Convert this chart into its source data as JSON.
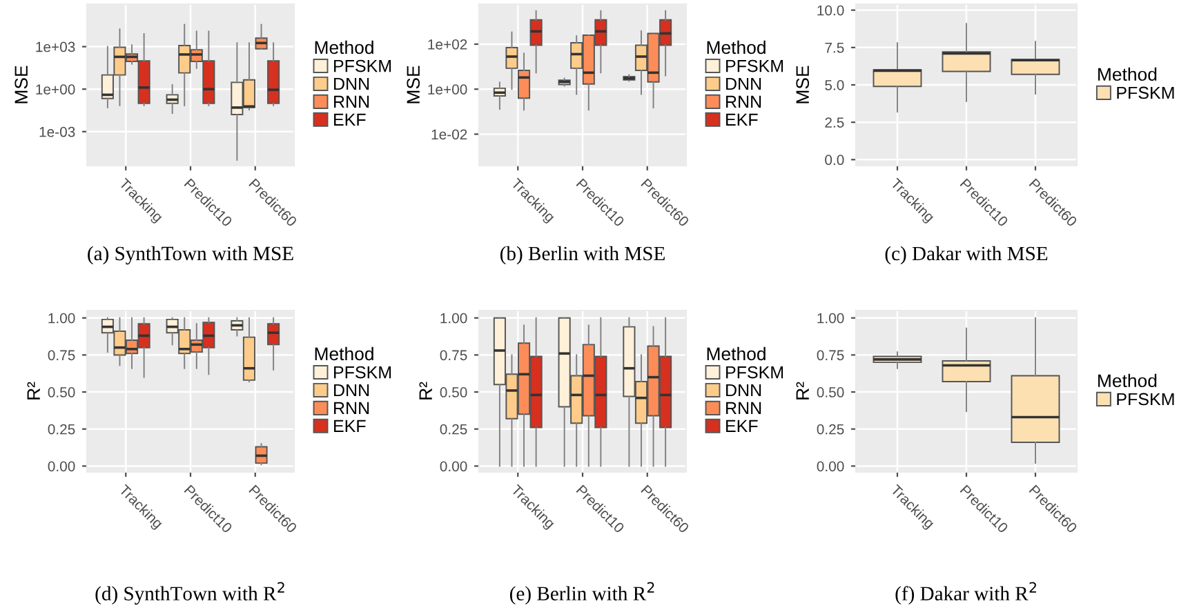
{
  "chart_data": [
    {
      "type": "box",
      "title": "(a) SynthTown with MSE",
      "ylabel": "MSE",
      "categories": [
        "Tracking",
        "Predict10",
        "Predict60"
      ],
      "log": true,
      "ylim": [
        4e-06,
        1000000
      ],
      "yticks": [
        {
          "value": 0.001,
          "label": "1e-03"
        },
        {
          "value": 1,
          "label": "1e+00"
        },
        {
          "value": 1000,
          "label": "1e+03"
        }
      ],
      "grid": true,
      "legend": "right",
      "legend_title": "Method",
      "series": [
        {
          "name": "PFSKM",
          "color": "#fef0d9",
          "boxes": [
            {
              "low": 0.05,
              "q1": 0.22,
              "median": 0.4,
              "q3": 10,
              "high": 1000
            },
            {
              "low": 0.02,
              "q1": 0.1,
              "median": 0.18,
              "q3": 0.4,
              "high": 2
            },
            {
              "low": 1e-05,
              "q1": 0.016,
              "median": 0.05,
              "q3": 3,
              "high": 1800
            }
          ]
        },
        {
          "name": "DNN",
          "color": "#fdcc8a",
          "boxes": [
            {
              "low": 0.07,
              "q1": 10,
              "median": 190,
              "q3": 900,
              "high": 17000
            },
            {
              "low": 0.07,
              "q1": 14,
              "median": 280,
              "q3": 1200,
              "high": 36000
            },
            {
              "low": 0.035,
              "q1": 0.05,
              "median": 0.06,
              "q3": 4.5,
              "high": 1800
            }
          ]
        },
        {
          "name": "RNN",
          "color": "#fc8d59",
          "boxes": [
            {
              "low": 60,
              "q1": 90,
              "median": 190,
              "q3": 300,
              "high": 1300
            },
            {
              "low": 30,
              "q1": 90,
              "median": 280,
              "q3": 600,
              "high": 12000
            },
            {
              "low": 700,
              "q1": 700,
              "median": 1800,
              "q3": 4000,
              "high": 36000
            }
          ]
        },
        {
          "name": "EKF",
          "color": "#d7301f",
          "boxes": [
            {
              "low": 0.07,
              "q1": 0.1,
              "median": 1.3,
              "q3": 100,
              "high": 8000
            },
            {
              "low": 0.07,
              "q1": 0.1,
              "median": 1,
              "q3": 100,
              "high": 12000
            },
            {
              "low": 0.07,
              "q1": 0.1,
              "median": 0.9,
              "q3": 100,
              "high": 1800
            }
          ]
        }
      ]
    },
    {
      "type": "box",
      "title": "(b) Berlin with MSE",
      "ylabel": "MSE",
      "categories": [
        "Tracking",
        "Predict10",
        "Predict60"
      ],
      "log": true,
      "ylim": [
        0.0004,
        6000
      ],
      "yticks": [
        {
          "value": 0.01,
          "label": "1e-02"
        },
        {
          "value": 1,
          "label": "1e+00"
        },
        {
          "value": 100,
          "label": "1e+02"
        }
      ],
      "grid": true,
      "legend": "right",
      "legend_title": "Method",
      "series": [
        {
          "name": "PFSKM",
          "color": "#fef0d9",
          "boxes": [
            {
              "low": 0.13,
              "q1": 0.5,
              "median": 0.7,
              "q3": 1.1,
              "high": 2
            },
            {
              "low": 1.4,
              "q1": 1.6,
              "median": 2.1,
              "q3": 2.5,
              "high": 3
            },
            {
              "low": 2.3,
              "q1": 2.6,
              "median": 3,
              "q3": 3.6,
              "high": 4.3
            }
          ]
        },
        {
          "name": "DNN",
          "color": "#fdcc8a",
          "boxes": [
            {
              "low": 1,
              "q1": 8.5,
              "median": 28,
              "q3": 70,
              "high": 340
            },
            {
              "low": 0.6,
              "q1": 8.5,
              "median": 36,
              "q3": 115,
              "high": 230
            },
            {
              "low": 0.6,
              "q1": 6.8,
              "median": 28,
              "q3": 90,
              "high": 380
            }
          ]
        },
        {
          "name": "RNN",
          "color": "#fc8d59",
          "boxes": [
            {
              "low": 0.12,
              "q1": 0.4,
              "median": 3.3,
              "q3": 6.8,
              "high": 39
            },
            {
              "low": 0.12,
              "q1": 1.7,
              "median": 5.4,
              "q3": 250,
              "high": 250
            },
            {
              "low": 0.15,
              "q1": 2.1,
              "median": 5.4,
              "q3": 300,
              "high": 300
            }
          ]
        },
        {
          "name": "EKF",
          "color": "#d7301f",
          "boxes": [
            {
              "low": 5.4,
              "q1": 90,
              "median": 370,
              "q3": 1200,
              "high": 3000
            },
            {
              "low": 5.4,
              "q1": 90,
              "median": 370,
              "q3": 1200,
              "high": 3000
            },
            {
              "low": 4,
              "q1": 90,
              "median": 300,
              "q3": 1200,
              "high": 3000
            }
          ]
        }
      ]
    },
    {
      "type": "box",
      "title": "(c) Dakar with MSE",
      "ylabel": "MSE",
      "categories": [
        "Tracking",
        "Predict10",
        "Predict60"
      ],
      "ylim": [
        -0.4,
        10.4
      ],
      "yticks": [
        {
          "value": 0,
          "label": "0.0"
        },
        {
          "value": 2.5,
          "label": "2.5"
        },
        {
          "value": 5,
          "label": "5.0"
        },
        {
          "value": 7.5,
          "label": "7.5"
        },
        {
          "value": 10,
          "label": "10.0"
        }
      ],
      "grid": true,
      "legend": "right",
      "legend_title": "Method",
      "series": [
        {
          "name": "PFSKM",
          "color": "#fde0b2",
          "boxes": [
            {
              "low": 3.2,
              "q1": 4.9,
              "median": 5.95,
              "q3": 6.0,
              "high": 7.8
            },
            {
              "low": 3.9,
              "q1": 5.9,
              "median": 7.1,
              "q3": 7.2,
              "high": 9.1
            },
            {
              "low": 4.4,
              "q1": 5.7,
              "median": 6.65,
              "q3": 6.7,
              "high": 7.9
            }
          ]
        }
      ]
    },
    {
      "type": "box",
      "title": "(d) SynthTown with R$^{2}$",
      "ylabel": "R²",
      "categories": [
        "Tracking",
        "Predict10",
        "Predict60"
      ],
      "ylim": [
        -0.04,
        1.05
      ],
      "yticks": [
        {
          "value": 0,
          "label": "0.00"
        },
        {
          "value": 0.25,
          "label": "0.25"
        },
        {
          "value": 0.5,
          "label": "0.50"
        },
        {
          "value": 0.75,
          "label": "0.75"
        },
        {
          "value": 1,
          "label": "1.00"
        }
      ],
      "grid": true,
      "legend": "right",
      "legend_title": "Method",
      "series": [
        {
          "name": "PFSKM",
          "color": "#fef0d9",
          "boxes": [
            {
              "low": 0.77,
              "q1": 0.9,
              "median": 0.94,
              "q3": 0.99,
              "high": 1.0
            },
            {
              "low": 0.82,
              "q1": 0.9,
              "median": 0.94,
              "q3": 0.99,
              "high": 1.0
            },
            {
              "low": 0.88,
              "q1": 0.92,
              "median": 0.95,
              "q3": 0.98,
              "high": 1.0
            }
          ]
        },
        {
          "name": "DNN",
          "color": "#fdcc8a",
          "boxes": [
            {
              "low": 0.68,
              "q1": 0.75,
              "median": 0.8,
              "q3": 0.91,
              "high": 1.0
            },
            {
              "low": 0.66,
              "q1": 0.76,
              "median": 0.79,
              "q3": 0.92,
              "high": 1.0
            },
            {
              "low": 0.57,
              "q1": 0.58,
              "median": 0.66,
              "q3": 0.87,
              "high": 1.0
            }
          ]
        },
        {
          "name": "RNN",
          "color": "#fc8d59",
          "boxes": [
            {
              "low": 0.66,
              "q1": 0.76,
              "median": 0.79,
              "q3": 0.85,
              "high": 1.0
            },
            {
              "low": 0.66,
              "q1": 0.77,
              "median": 0.82,
              "q3": 0.85,
              "high": 0.96
            },
            {
              "low": 0.01,
              "q1": 0.02,
              "median": 0.07,
              "q3": 0.13,
              "high": 0.15
            }
          ]
        },
        {
          "name": "EKF",
          "color": "#d7301f",
          "boxes": [
            {
              "low": 0.6,
              "q1": 0.8,
              "median": 0.88,
              "q3": 0.96,
              "high": 1.0
            },
            {
              "low": 0.62,
              "q1": 0.8,
              "median": 0.88,
              "q3": 0.97,
              "high": 1.0
            },
            {
              "low": 0.65,
              "q1": 0.82,
              "median": 0.9,
              "q3": 0.96,
              "high": 1.0
            }
          ]
        }
      ]
    },
    {
      "type": "box",
      "title": "(e) Berlin with R$^{2}$",
      "ylabel": "R²",
      "categories": [
        "Tracking",
        "Predict10",
        "Predict60"
      ],
      "ylim": [
        -0.04,
        1.05
      ],
      "yticks": [
        {
          "value": 0,
          "label": "0.00"
        },
        {
          "value": 0.25,
          "label": "0.25"
        },
        {
          "value": 0.5,
          "label": "0.50"
        },
        {
          "value": 0.75,
          "label": "0.75"
        },
        {
          "value": 1,
          "label": "1.00"
        }
      ],
      "grid": true,
      "legend": "right",
      "legend_title": "Method",
      "series": [
        {
          "name": "PFSKM",
          "color": "#fef0d9",
          "boxes": [
            {
              "low": 0,
              "q1": 0.55,
              "median": 0.78,
              "q3": 1.0,
              "high": 1.0
            },
            {
              "low": 0,
              "q1": 0.4,
              "median": 0.76,
              "q3": 1.0,
              "high": 1.0
            },
            {
              "low": 0,
              "q1": 0.47,
              "median": 0.66,
              "q3": 0.94,
              "high": 1.0
            }
          ]
        },
        {
          "name": "DNN",
          "color": "#fdcc8a",
          "boxes": [
            {
              "low": 0,
              "q1": 0.32,
              "median": 0.51,
              "q3": 0.62,
              "high": 0.75
            },
            {
              "low": 0,
              "q1": 0.29,
              "median": 0.48,
              "q3": 0.61,
              "high": 0.75
            },
            {
              "low": 0,
              "q1": 0.29,
              "median": 0.46,
              "q3": 0.57,
              "high": 0.75
            }
          ]
        },
        {
          "name": "RNN",
          "color": "#fc8d59",
          "boxes": [
            {
              "low": 0,
              "q1": 0.35,
              "median": 0.62,
              "q3": 0.83,
              "high": 0.95
            },
            {
              "low": 0,
              "q1": 0.34,
              "median": 0.61,
              "q3": 0.82,
              "high": 0.95
            },
            {
              "low": 0,
              "q1": 0.34,
              "median": 0.6,
              "q3": 0.81,
              "high": 0.94
            }
          ]
        },
        {
          "name": "EKF",
          "color": "#d7301f",
          "boxes": [
            {
              "low": 0,
              "q1": 0.26,
              "median": 0.48,
              "q3": 0.74,
              "high": 1.0
            },
            {
              "low": 0,
              "q1": 0.26,
              "median": 0.48,
              "q3": 0.74,
              "high": 1.0
            },
            {
              "low": 0,
              "q1": 0.26,
              "median": 0.48,
              "q3": 0.74,
              "high": 1.0
            }
          ]
        }
      ]
    },
    {
      "type": "box",
      "title": "(f) Dakar with R$^{2}$",
      "ylabel": "R²",
      "categories": [
        "Tracking",
        "Predict10",
        "Predict60"
      ],
      "ylim": [
        -0.04,
        1.05
      ],
      "yticks": [
        {
          "value": 0,
          "label": "0.00"
        },
        {
          "value": 0.25,
          "label": "0.25"
        },
        {
          "value": 0.5,
          "label": "0.50"
        },
        {
          "value": 0.75,
          "label": "0.75"
        },
        {
          "value": 1,
          "label": "1.00"
        }
      ],
      "grid": true,
      "legend": "right",
      "legend_title": "Method",
      "series": [
        {
          "name": "PFSKM",
          "color": "#fde0b2",
          "boxes": [
            {
              "low": 0.66,
              "q1": 0.7,
              "median": 0.72,
              "q3": 0.74,
              "high": 0.77
            },
            {
              "low": 0.37,
              "q1": 0.57,
              "median": 0.68,
              "q3": 0.71,
              "high": 0.93
            },
            {
              "low": 0.02,
              "q1": 0.16,
              "median": 0.33,
              "q3": 0.61,
              "high": 1.0
            }
          ]
        }
      ]
    }
  ]
}
